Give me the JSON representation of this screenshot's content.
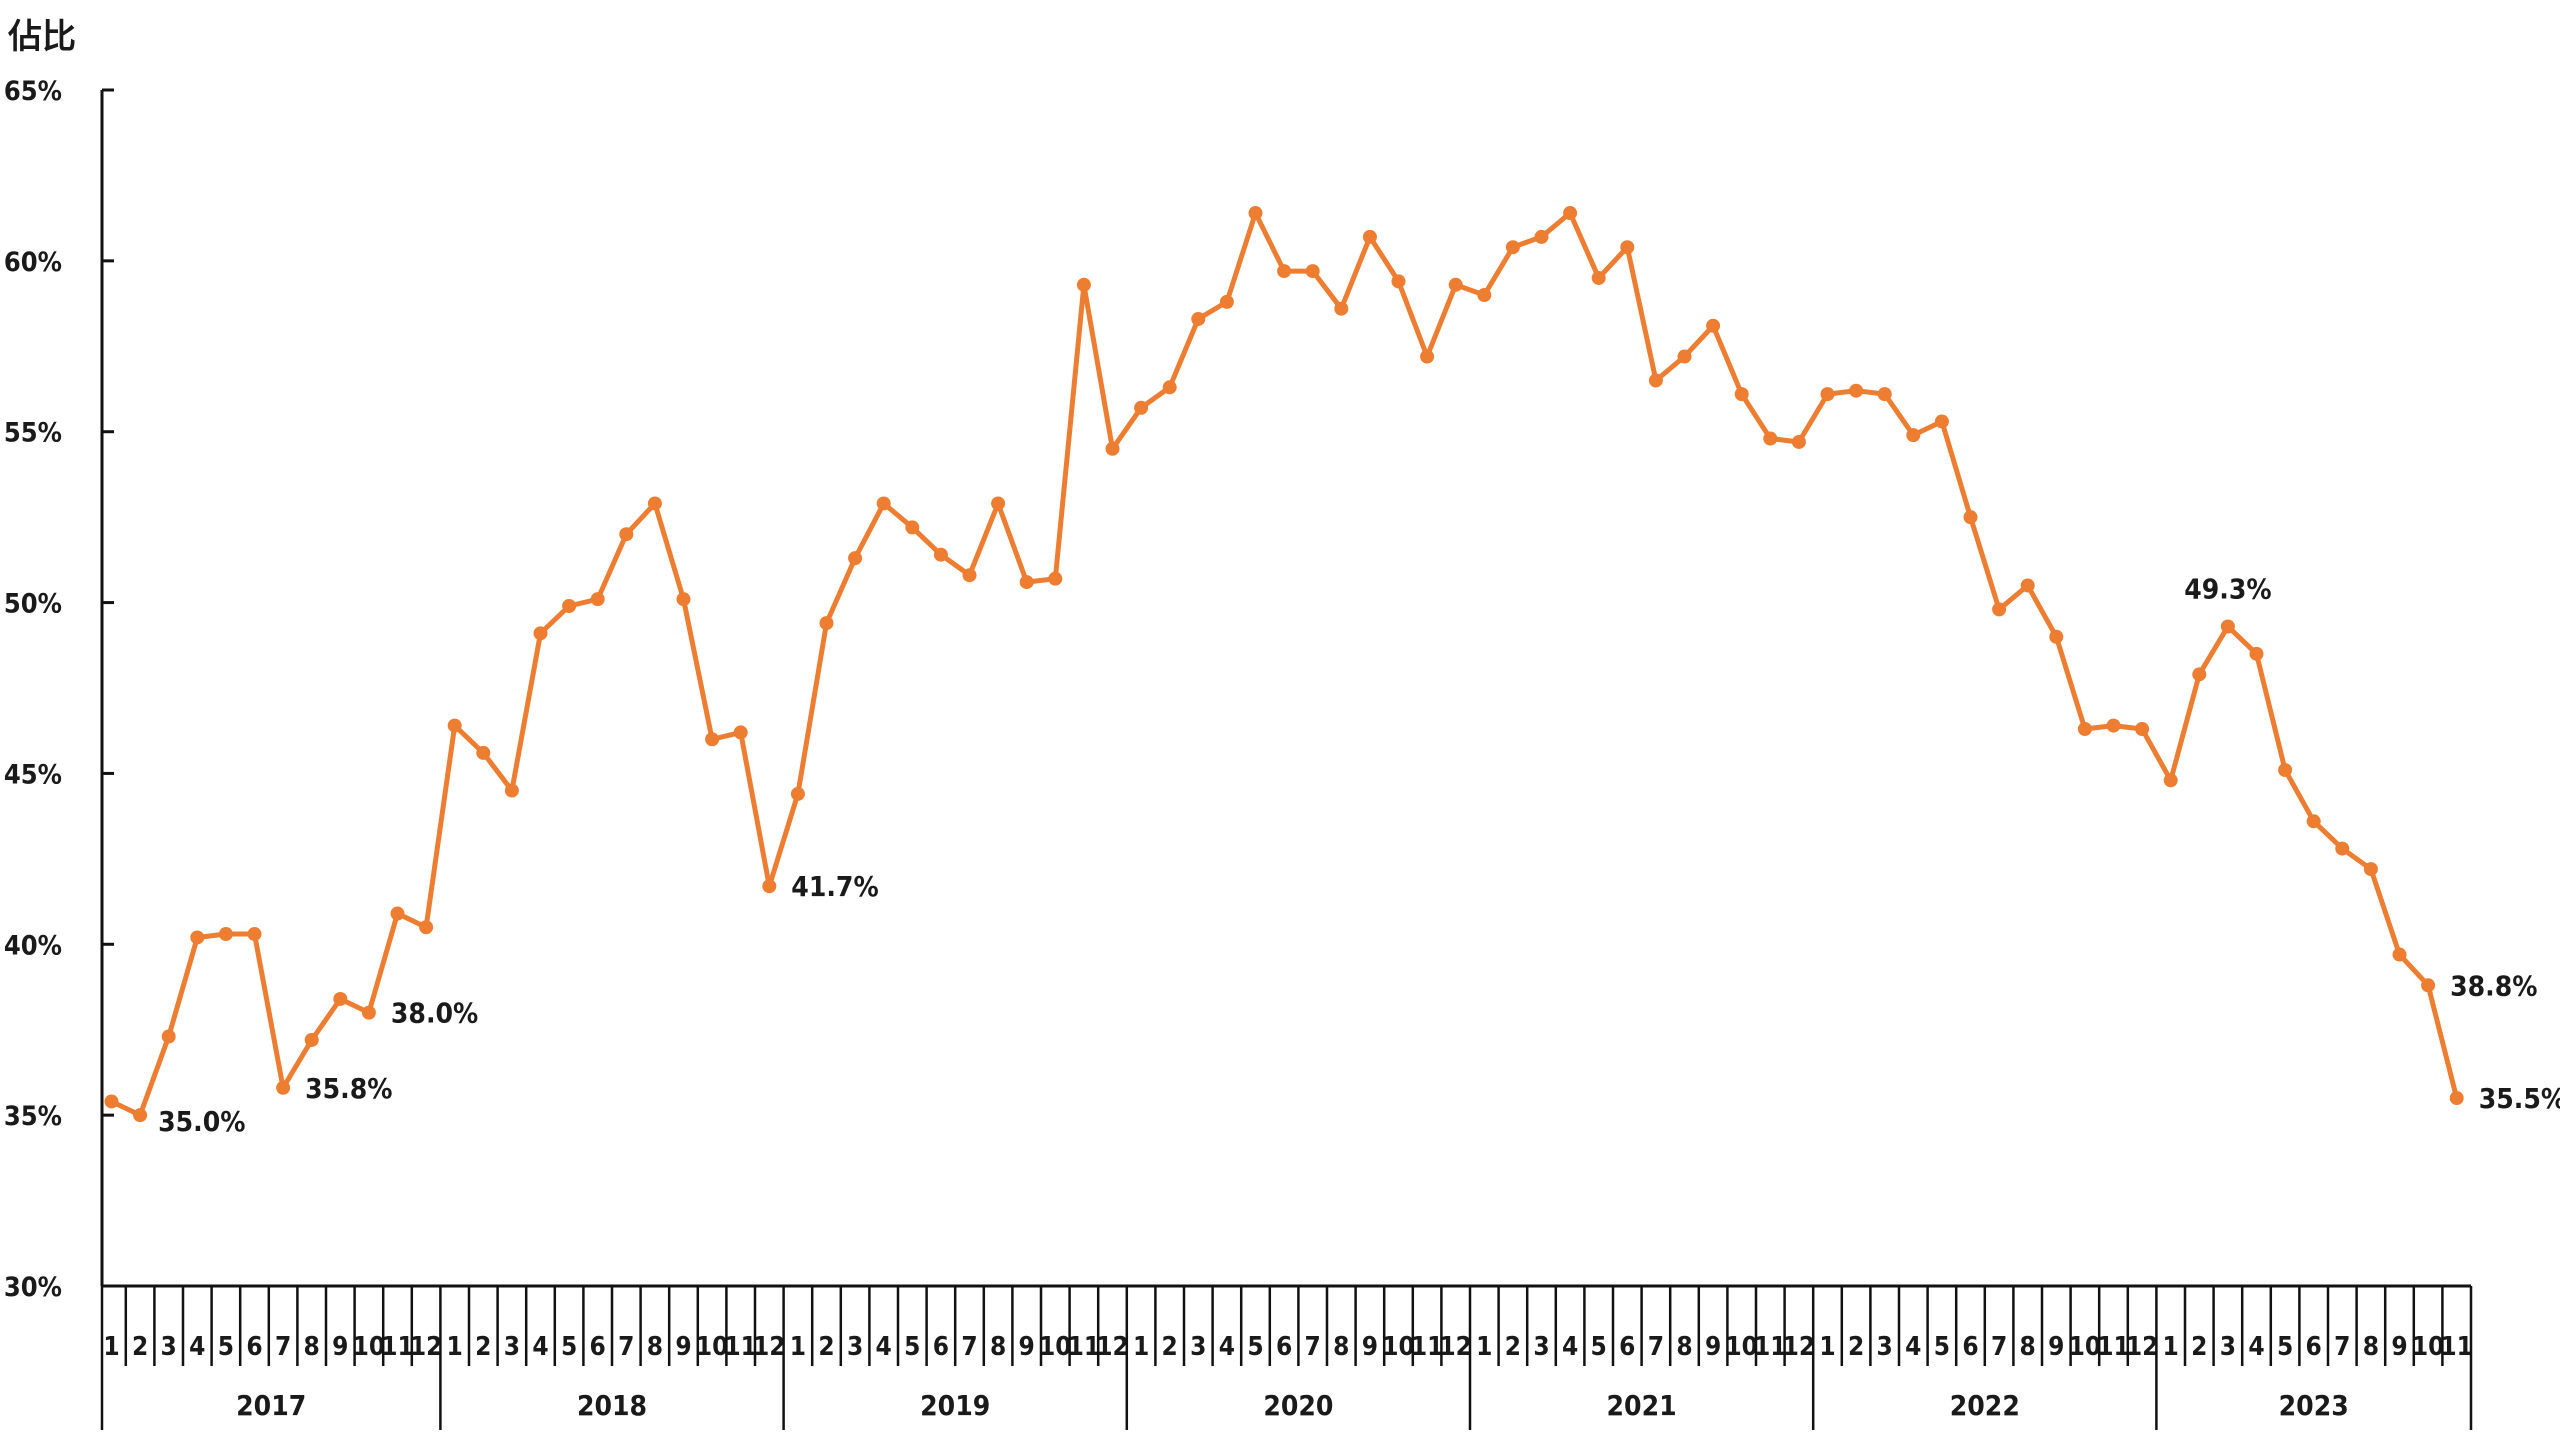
{
  "chart_data": {
    "type": "line",
    "ylabel": "佔比",
    "ylim": [
      30,
      65
    ],
    "yticks": [
      "30%",
      "35%",
      "40%",
      "45%",
      "50%",
      "55%",
      "60%",
      "65%"
    ],
    "ytick_values": [
      30,
      35,
      40,
      45,
      50,
      55,
      60,
      65
    ],
    "color": "#ED7D31",
    "years": [
      {
        "year": "2017",
        "months": [
          "1",
          "2",
          "3",
          "4",
          "5",
          "6",
          "7",
          "8",
          "9",
          "10",
          "11",
          "12"
        ]
      },
      {
        "year": "2018",
        "months": [
          "1",
          "2",
          "3",
          "4",
          "5",
          "6",
          "7",
          "8",
          "9",
          "10",
          "11",
          "12"
        ]
      },
      {
        "year": "2019",
        "months": [
          "1",
          "2",
          "3",
          "4",
          "5",
          "6",
          "7",
          "8",
          "9",
          "10",
          "11",
          "12"
        ]
      },
      {
        "year": "2020",
        "months": [
          "1",
          "2",
          "3",
          "4",
          "5",
          "6",
          "7",
          "8",
          "9",
          "10",
          "11",
          "12"
        ]
      },
      {
        "year": "2021",
        "months": [
          "1",
          "2",
          "3",
          "4",
          "5",
          "6",
          "7",
          "8",
          "9",
          "10",
          "11",
          "12"
        ]
      },
      {
        "year": "2022",
        "months": [
          "1",
          "2",
          "3",
          "4",
          "5",
          "6",
          "7",
          "8",
          "9",
          "10",
          "11",
          "12"
        ]
      },
      {
        "year": "2023",
        "months": [
          "1",
          "2",
          "3",
          "4",
          "5",
          "6",
          "7",
          "8",
          "9",
          "10",
          "11"
        ]
      }
    ],
    "values": [
      35.4,
      35.0,
      37.3,
      40.2,
      40.3,
      40.3,
      35.8,
      37.2,
      38.4,
      38.0,
      40.9,
      40.5,
      46.4,
      45.6,
      44.5,
      49.1,
      49.9,
      50.1,
      52.0,
      52.9,
      50.1,
      46.0,
      46.2,
      41.7,
      44.4,
      49.4,
      51.3,
      52.9,
      52.2,
      51.4,
      50.8,
      52.9,
      50.6,
      50.7,
      59.3,
      54.5,
      55.7,
      56.3,
      58.3,
      58.8,
      61.4,
      59.7,
      59.7,
      58.6,
      60.7,
      59.4,
      57.2,
      59.3,
      59.0,
      60.4,
      60.7,
      61.4,
      59.5,
      60.4,
      56.5,
      57.2,
      58.1,
      56.1,
      54.8,
      54.7,
      56.1,
      56.2,
      56.1,
      54.9,
      55.3,
      52.5,
      49.8,
      50.5,
      49.0,
      46.3,
      46.4,
      46.3,
      44.8,
      47.9,
      49.3,
      48.5,
      45.1,
      43.6,
      42.8,
      42.2,
      39.7,
      38.8,
      35.5
    ],
    "annotations": [
      {
        "index": 1,
        "label": "35.0%",
        "pos": "below-right"
      },
      {
        "index": 6,
        "label": "35.8%",
        "pos": "right"
      },
      {
        "index": 9,
        "label": "38.0%",
        "pos": "right"
      },
      {
        "index": 23,
        "label": "41.7%",
        "pos": "right"
      },
      {
        "index": 74,
        "label": "49.3%",
        "pos": "above"
      },
      {
        "index": 81,
        "label": "38.8%",
        "pos": "right"
      },
      {
        "index": 82,
        "label": "35.5%",
        "pos": "right"
      }
    ]
  }
}
